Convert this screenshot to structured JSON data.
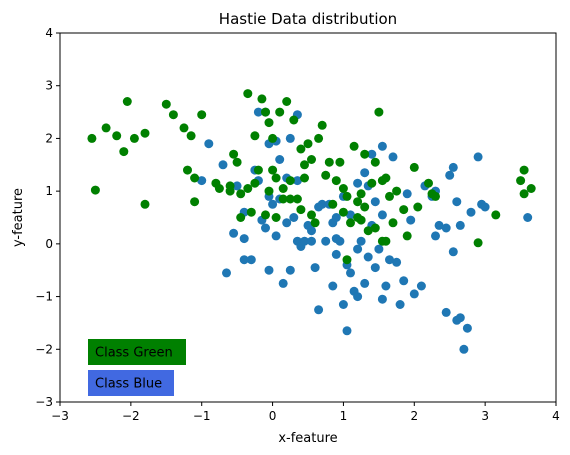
{
  "chart_data": {
    "type": "scatter",
    "title": "Hastie Data distribution",
    "xlabel": "x-feature",
    "ylabel": "y-feature",
    "xlim": [
      -3,
      4
    ],
    "ylim": [
      -3,
      4
    ],
    "xticks": [
      "−3",
      "−2",
      "−1",
      "0",
      "1",
      "2",
      "3",
      "4"
    ],
    "yticks": [
      "−3",
      "−2",
      "−1",
      "0",
      "1",
      "2",
      "3",
      "4"
    ],
    "grid": false,
    "legend_placement": "lower-left",
    "legend": [
      {
        "label": "Class Green",
        "box_color": "#008000",
        "text_color": "#ffffff"
      },
      {
        "label": "Class Blue",
        "box_color": "#4169e1",
        "text_color": "#d4b878"
      }
    ],
    "series": [
      {
        "color": "#1f77b4",
        "points": [
          [
            -0.9,
            1.9
          ],
          [
            -1.0,
            1.2
          ],
          [
            -0.7,
            1.5
          ],
          [
            -0.5,
            1.1
          ],
          [
            -0.4,
            0.6
          ],
          [
            -0.25,
            1.4
          ],
          [
            -0.2,
            1.2
          ],
          [
            -0.2,
            2.5
          ],
          [
            -0.1,
            2.5
          ],
          [
            -0.05,
            1.9
          ],
          [
            -0.05,
            0.9
          ],
          [
            0.05,
            1.95
          ],
          [
            0.1,
            1.6
          ],
          [
            0.1,
            0.85
          ],
          [
            0.2,
            1.25
          ],
          [
            -0.3,
            -0.3
          ],
          [
            -0.65,
            -0.55
          ],
          [
            -0.55,
            0.2
          ],
          [
            -0.05,
            -0.5
          ],
          [
            0.15,
            -0.75
          ],
          [
            0.25,
            -0.5
          ],
          [
            0.35,
            0.05
          ],
          [
            0.4,
            -0.05
          ],
          [
            0.45,
            0.05
          ],
          [
            0.5,
            0.35
          ],
          [
            0.55,
            0.25
          ],
          [
            0.6,
            -0.45
          ],
          [
            0.7,
            0.75
          ],
          [
            0.75,
            0.05
          ],
          [
            0.85,
            0.4
          ],
          [
            0.9,
            -0.2
          ],
          [
            0.95,
            0.05
          ],
          [
            1.0,
            -1.15
          ],
          [
            1.05,
            -0.4
          ],
          [
            1.1,
            -0.55
          ],
          [
            1.15,
            -0.9
          ],
          [
            1.2,
            -0.1
          ],
          [
            1.25,
            0.05
          ],
          [
            1.3,
            -0.75
          ],
          [
            1.35,
            -0.25
          ],
          [
            1.4,
            0.35
          ],
          [
            1.45,
            -0.45
          ],
          [
            1.5,
            -0.1
          ],
          [
            1.55,
            -1.05
          ],
          [
            1.6,
            -0.8
          ],
          [
            1.65,
            -0.3
          ],
          [
            1.75,
            -0.35
          ],
          [
            1.8,
            -1.15
          ],
          [
            1.85,
            -0.7
          ],
          [
            1.9,
            0.95
          ],
          [
            2.1,
            -0.8
          ],
          [
            2.15,
            1.1
          ],
          [
            2.25,
            0.9
          ],
          [
            2.3,
            0.15
          ],
          [
            2.35,
            0.35
          ],
          [
            2.45,
            -1.3
          ],
          [
            2.55,
            -0.15
          ],
          [
            2.6,
            -1.45
          ],
          [
            2.65,
            -1.4
          ],
          [
            2.7,
            -2.0
          ],
          [
            2.75,
            -1.6
          ],
          [
            2.8,
            0.6
          ],
          [
            2.9,
            1.65
          ],
          [
            2.95,
            0.75
          ],
          [
            3.0,
            0.7
          ],
          [
            3.6,
            0.5
          ],
          [
            2.5,
            1.3
          ],
          [
            2.55,
            1.45
          ],
          [
            2.6,
            0.8
          ],
          [
            2.3,
            1.0
          ],
          [
            1.7,
            1.65
          ],
          [
            1.55,
            1.85
          ],
          [
            1.4,
            1.7
          ],
          [
            1.3,
            1.35
          ],
          [
            1.2,
            1.15
          ],
          [
            1.35,
            1.1
          ],
          [
            1.45,
            0.8
          ],
          [
            1.55,
            0.55
          ],
          [
            1.0,
            0.9
          ],
          [
            0.9,
            0.5
          ],
          [
            0.8,
            0.75
          ],
          [
            0.65,
            0.7
          ],
          [
            0.35,
            1.2
          ],
          [
            0.3,
            0.5
          ],
          [
            0.2,
            0.4
          ],
          [
            0.0,
            0.75
          ],
          [
            -0.1,
            0.3
          ],
          [
            -0.15,
            0.45
          ],
          [
            0.05,
            0.15
          ],
          [
            -0.4,
            -0.3
          ],
          [
            0.65,
            -1.25
          ],
          [
            1.05,
            -1.65
          ],
          [
            1.95,
            0.45
          ],
          [
            2.45,
            0.3
          ],
          [
            2.0,
            -0.95
          ],
          [
            1.1,
            0.55
          ],
          [
            0.25,
            2.0
          ],
          [
            0.35,
            2.45
          ],
          [
            0.55,
            0.05
          ],
          [
            -0.4,
            0.1
          ],
          [
            0.9,
            0.1
          ],
          [
            2.65,
            0.35
          ],
          [
            0.85,
            -0.8
          ],
          [
            1.2,
            -1.0
          ]
        ]
      },
      {
        "color": "#008000",
        "points": [
          [
            -2.55,
            2.0
          ],
          [
            -2.5,
            1.02
          ],
          [
            -2.35,
            2.2
          ],
          [
            -2.2,
            2.05
          ],
          [
            -2.1,
            1.75
          ],
          [
            -2.05,
            2.7
          ],
          [
            -1.95,
            2.0
          ],
          [
            -1.8,
            2.1
          ],
          [
            -1.8,
            0.75
          ],
          [
            -1.5,
            2.65
          ],
          [
            -1.4,
            2.45
          ],
          [
            -1.25,
            2.2
          ],
          [
            -1.2,
            1.4
          ],
          [
            -1.15,
            2.05
          ],
          [
            -1.1,
            1.25
          ],
          [
            -1.1,
            0.8
          ],
          [
            -1.0,
            2.45
          ],
          [
            -0.8,
            1.15
          ],
          [
            -0.75,
            1.05
          ],
          [
            -0.6,
            1.1
          ],
          [
            -0.55,
            1.7
          ],
          [
            -0.45,
            0.95
          ],
          [
            -0.35,
            1.05
          ],
          [
            -0.3,
            0.6
          ],
          [
            -0.2,
            1.4
          ],
          [
            -0.15,
            2.75
          ],
          [
            -0.1,
            2.5
          ],
          [
            -0.05,
            2.3
          ],
          [
            0.0,
            2.0
          ],
          [
            0.0,
            1.4
          ],
          [
            0.05,
            1.25
          ],
          [
            0.1,
            2.5
          ],
          [
            0.15,
            1.05
          ],
          [
            0.2,
            2.7
          ],
          [
            0.25,
            1.2
          ],
          [
            0.3,
            2.35
          ],
          [
            0.35,
            0.85
          ],
          [
            0.4,
            1.8
          ],
          [
            0.45,
            1.25
          ],
          [
            0.5,
            1.9
          ],
          [
            0.55,
            0.55
          ],
          [
            0.6,
            0.4
          ],
          [
            0.65,
            2.0
          ],
          [
            0.7,
            2.25
          ],
          [
            0.75,
            1.3
          ],
          [
            0.8,
            1.55
          ],
          [
            0.85,
            0.75
          ],
          [
            0.9,
            1.2
          ],
          [
            0.95,
            1.55
          ],
          [
            1.0,
            1.05
          ],
          [
            1.0,
            0.6
          ],
          [
            1.05,
            0.9
          ],
          [
            1.1,
            0.4
          ],
          [
            1.15,
            1.85
          ],
          [
            1.2,
            0.5
          ],
          [
            1.25,
            0.95
          ],
          [
            1.3,
            0.7
          ],
          [
            1.35,
            0.25
          ],
          [
            1.4,
            1.15
          ],
          [
            1.45,
            1.55
          ],
          [
            1.5,
            2.5
          ],
          [
            1.55,
            0.05
          ],
          [
            1.6,
            1.25
          ],
          [
            1.65,
            0.9
          ],
          [
            1.7,
            0.4
          ],
          [
            1.75,
            1.0
          ],
          [
            1.85,
            0.65
          ],
          [
            1.9,
            0.15
          ],
          [
            2.0,
            1.45
          ],
          [
            2.05,
            0.7
          ],
          [
            2.2,
            1.15
          ],
          [
            2.25,
            0.95
          ],
          [
            2.3,
            0.9
          ],
          [
            2.9,
            0.02
          ],
          [
            3.15,
            0.55
          ],
          [
            3.5,
            1.2
          ],
          [
            3.55,
            1.4
          ],
          [
            3.55,
            0.95
          ],
          [
            3.65,
            1.05
          ],
          [
            0.55,
            1.6
          ],
          [
            -0.35,
            2.85
          ],
          [
            -0.25,
            2.05
          ],
          [
            0.25,
            0.85
          ],
          [
            0.4,
            0.65
          ],
          [
            -0.5,
            1.55
          ],
          [
            -0.25,
            1.15
          ],
          [
            -0.05,
            1.0
          ],
          [
            0.15,
            0.85
          ],
          [
            0.45,
            1.5
          ],
          [
            -0.45,
            0.5
          ],
          [
            1.05,
            -0.3
          ],
          [
            1.2,
            0.8
          ],
          [
            1.3,
            1.7
          ],
          [
            1.45,
            0.3
          ],
          [
            1.6,
            0.05
          ],
          [
            0.05,
            0.5
          ],
          [
            -0.1,
            0.55
          ],
          [
            1.55,
            1.2
          ],
          [
            1.25,
            0.45
          ],
          [
            -0.6,
            1.0
          ]
        ]
      }
    ]
  }
}
